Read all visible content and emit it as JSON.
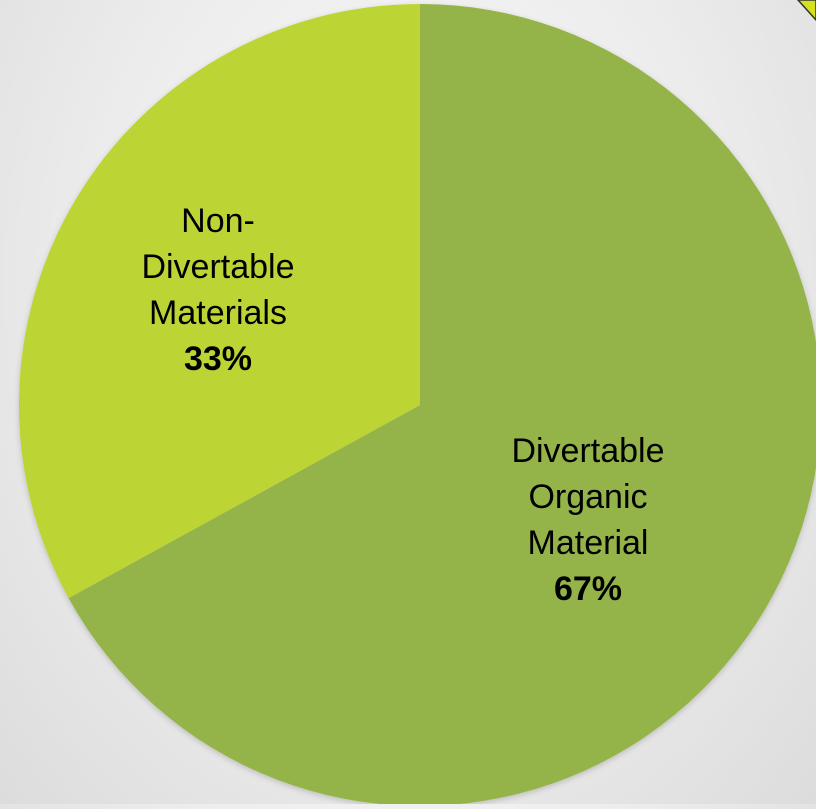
{
  "colors": {
    "divertable": "#94b44a",
    "non_divertable": "#bcd535",
    "label_text": "#000000",
    "corner_accent": "#d4e11c"
  },
  "chart_data": {
    "type": "pie",
    "slices": [
      {
        "name": "Divertable Organic Material",
        "label_lines": [
          "Divertable",
          "Organic",
          "Material"
        ],
        "percent_label": "67%",
        "value": 67,
        "color_key": "divertable"
      },
      {
        "name": "Non-Divertable Materials",
        "label_lines": [
          "Non-",
          "Divertable",
          "Materials"
        ],
        "percent_label": "33%",
        "value": 33,
        "color_key": "non_divertable"
      }
    ],
    "start": "12 o'clock",
    "direction": "clockwise",
    "legend": "none"
  }
}
